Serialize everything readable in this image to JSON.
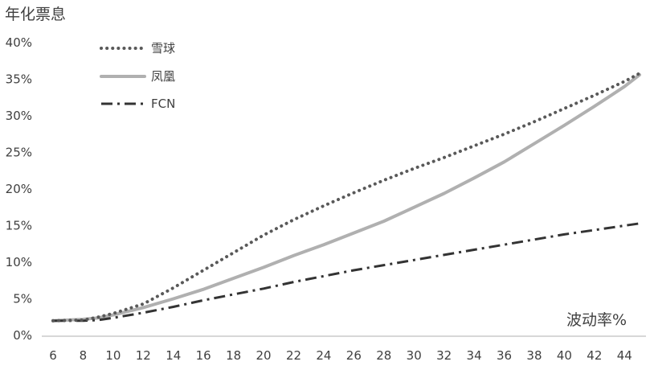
{
  "chart_data": {
    "type": "line",
    "title": "",
    "ylabel": "年化票息",
    "xlabel": "波动率%",
    "xlim": [
      6,
      45
    ],
    "ylim": [
      0,
      40
    ],
    "x_ticks": [
      "6",
      "8",
      "10",
      "12",
      "14",
      "16",
      "18",
      "20",
      "22",
      "24",
      "26",
      "28",
      "30",
      "32",
      "34",
      "36",
      "38",
      "40",
      "42",
      "44"
    ],
    "y_ticks": [
      "0%",
      "5%",
      "10%",
      "15%",
      "20%",
      "25%",
      "30%",
      "35%",
      "40%"
    ],
    "grid": false,
    "legend_position": "top-left",
    "x": [
      6,
      8,
      9,
      10,
      12,
      14,
      16,
      18,
      20,
      22,
      24,
      26,
      28,
      30,
      32,
      34,
      36,
      38,
      40,
      42,
      44,
      45
    ],
    "series": [
      {
        "name": "雪球",
        "style": "dotted",
        "color": "#595959",
        "values": [
          2.0,
          2.1,
          2.5,
          3.0,
          4.3,
          6.5,
          8.9,
          11.3,
          13.7,
          15.8,
          17.7,
          19.5,
          21.2,
          22.8,
          24.3,
          25.9,
          27.5,
          29.2,
          31.0,
          32.8,
          34.7,
          35.8
        ]
      },
      {
        "name": "凤凰",
        "style": "solid",
        "color": "#b0b0b0",
        "values": [
          2.0,
          2.2,
          2.4,
          2.8,
          3.8,
          5.0,
          6.3,
          7.8,
          9.3,
          10.9,
          12.4,
          14.0,
          15.6,
          17.5,
          19.4,
          21.5,
          23.7,
          26.2,
          28.7,
          31.3,
          34.0,
          35.6
        ]
      },
      {
        "name": "FCN",
        "style": "dash-dot",
        "color": "#333333",
        "values": [
          2.0,
          2.0,
          2.1,
          2.4,
          3.1,
          3.9,
          4.8,
          5.6,
          6.4,
          7.3,
          8.1,
          8.9,
          9.6,
          10.3,
          11.0,
          11.7,
          12.4,
          13.1,
          13.8,
          14.4,
          15.0,
          15.3
        ]
      }
    ]
  }
}
